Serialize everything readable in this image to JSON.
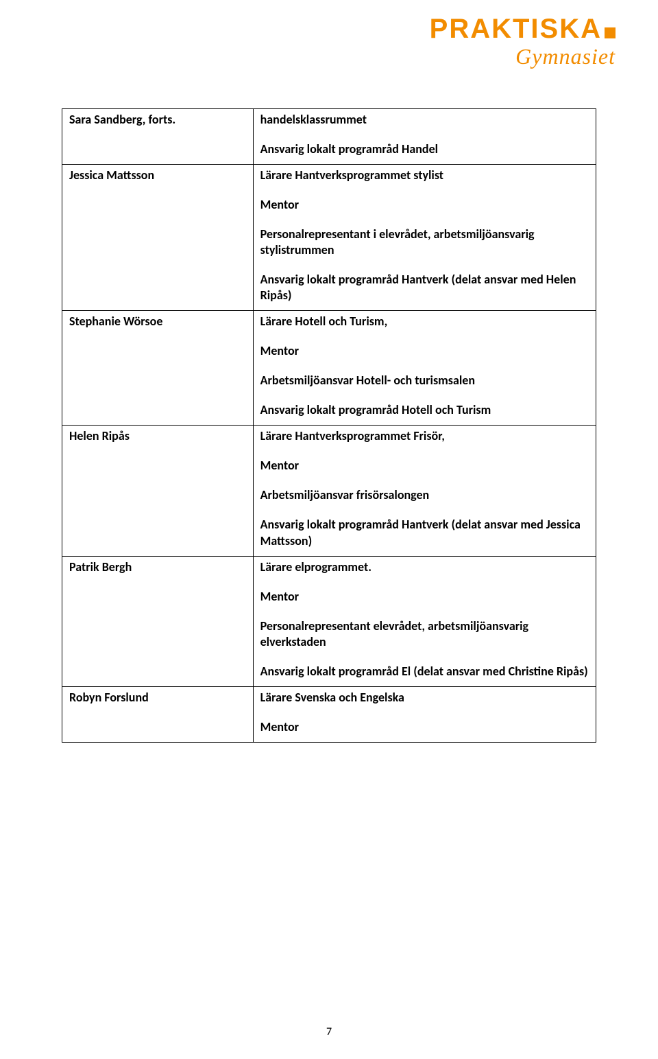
{
  "logo": {
    "main": "PRAKTISKA",
    "sub": "Gymnasiet",
    "brand_color": "#f28c00"
  },
  "page_number": "7",
  "rows": [
    {
      "name": "Sara Sandberg, forts.",
      "blocks": [
        "handelsklassrummet",
        "Ansvarig lokalt programråd Handel"
      ]
    },
    {
      "name": "Jessica Mattsson",
      "blocks": [
        "Lärare Hantverksprogrammet stylist",
        "Mentor",
        "Personalrepresentant i elevrådet, arbetsmiljöansvarig stylistrummen",
        "Ansvarig lokalt programråd Hantverk (delat ansvar med Helen Ripås)"
      ]
    },
    {
      "name": "Stephanie Wörsoe",
      "blocks": [
        "Lärare Hotell och Turism,",
        "Mentor",
        "Arbetsmiljöansvar Hotell- och turismsalen",
        "Ansvarig lokalt programråd Hotell och Turism"
      ]
    },
    {
      "name": "Helen Ripås",
      "blocks": [
        "Lärare Hantverksprogrammet Frisör,",
        "Mentor",
        "Arbetsmiljöansvar frisörsalongen",
        "Ansvarig lokalt programråd Hantverk (delat ansvar med Jessica Mattsson)"
      ]
    },
    {
      "name": "Patrik Bergh",
      "blocks": [
        "Lärare elprogrammet.",
        "Mentor",
        "Personalrepresentant elevrådet, arbetsmiljöansvarig elverkstaden",
        "Ansvarig lokalt programråd El (delat ansvar med Christine Ripås)"
      ]
    },
    {
      "name": "Robyn Forslund",
      "blocks": [
        "Lärare Svenska och Engelska",
        "Mentor"
      ]
    }
  ]
}
